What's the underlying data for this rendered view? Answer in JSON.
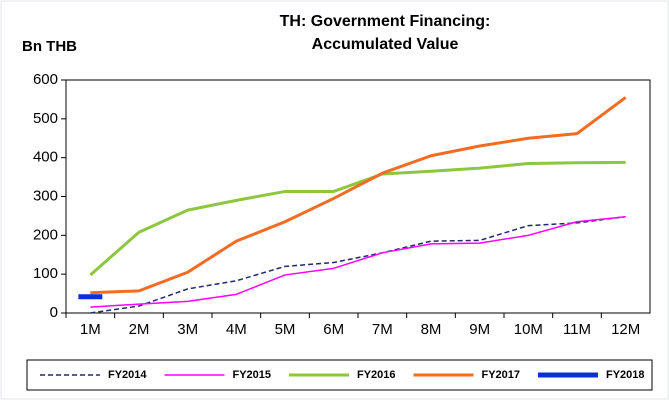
{
  "chart_data": {
    "type": "line",
    "title": [
      "TH: Government Financing:",
      "Accumulated Value"
    ],
    "y_label": "Bn THB",
    "categories": [
      "1M",
      "2M",
      "3M",
      "4M",
      "5M",
      "6M",
      "7M",
      "8M",
      "9M",
      "10M",
      "11M",
      "12M"
    ],
    "ylim": [
      0,
      600
    ],
    "yticks": [
      0,
      100,
      200,
      300,
      400,
      500,
      600
    ],
    "legend": "bottom",
    "series": [
      {
        "name": "FY2014",
        "color": "#1f2a6e",
        "dashed": true,
        "line_width": 1.5,
        "values": [
          0,
          18,
          62,
          83,
          120,
          130,
          155,
          185,
          187,
          225,
          232,
          248
        ]
      },
      {
        "name": "FY2015",
        "color": "#ff00ff",
        "dashed": false,
        "line_width": 1.5,
        "values": [
          15,
          23,
          30,
          48,
          98,
          115,
          155,
          178,
          180,
          200,
          235,
          248
        ]
      },
      {
        "name": "FY2016",
        "color": "#8dc63f",
        "dashed": false,
        "line_width": 3,
        "values": [
          98,
          208,
          265,
          290,
          313,
          313,
          358,
          365,
          373,
          385,
          387,
          388
        ]
      },
      {
        "name": "FY2017",
        "color": "#f26c21",
        "dashed": false,
        "line_width": 3,
        "values": [
          52,
          57,
          105,
          185,
          235,
          295,
          360,
          405,
          430,
          450,
          462,
          555
        ]
      },
      {
        "name": "FY2018",
        "color": "#0b2fd6",
        "dashed": false,
        "line_width": 5,
        "values": [
          42,
          null,
          null,
          null,
          null,
          null,
          null,
          null,
          null,
          null,
          null,
          null
        ]
      }
    ]
  }
}
